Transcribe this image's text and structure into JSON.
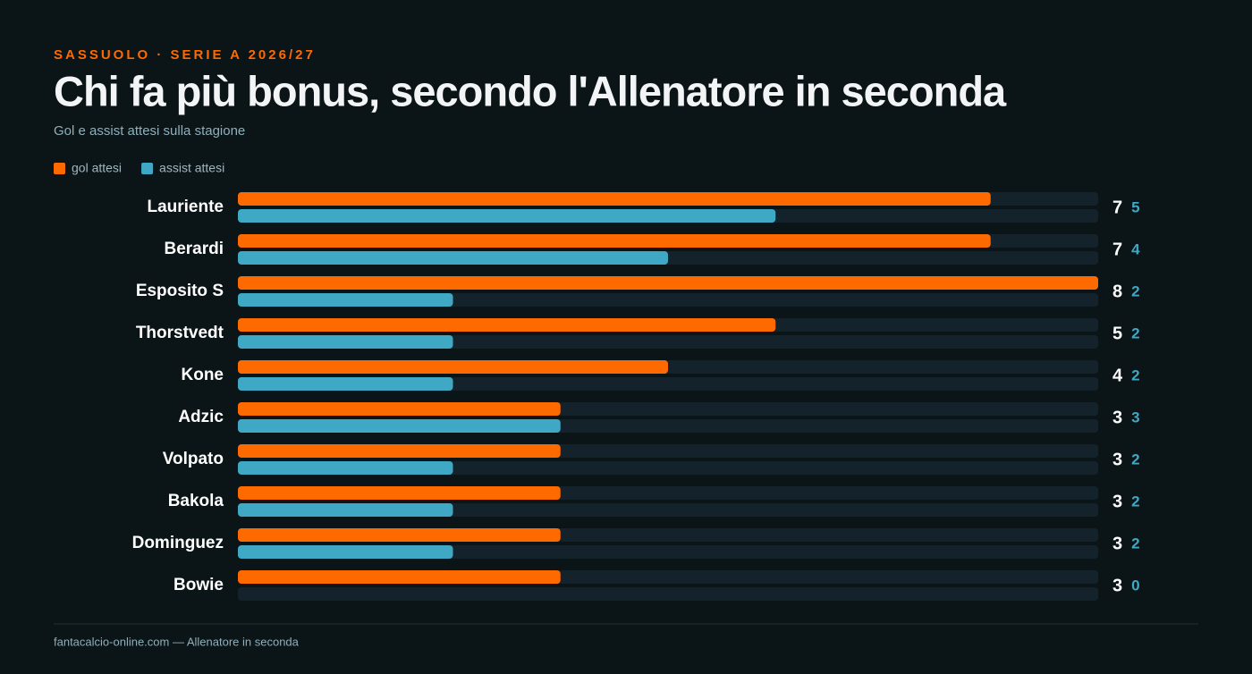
{
  "chart_data": {
    "type": "bar",
    "orientation": "horizontal",
    "kicker": "SASSUOLO · SERIE A 2026/27",
    "title": "Chi fa più bonus, secondo l'Allenatore in seconda",
    "subtitle": "Gol e assist attesi sulla stagione",
    "categories": [
      "Lauriente",
      "Berardi",
      "Esposito S",
      "Thorstvedt",
      "Kone",
      "Adzic",
      "Volpato",
      "Bakola",
      "Dominguez",
      "Bowie"
    ],
    "series": [
      {
        "name": "gol attesi",
        "color": "#ff6a00",
        "label_color": "#ffffff",
        "values": [
          7,
          7,
          8,
          5,
          4,
          3,
          3,
          3,
          3,
          3
        ]
      },
      {
        "name": "assist attesi",
        "color": "#3fa8c4",
        "label_color": "#3fa8c4",
        "values": [
          5,
          4,
          2,
          2,
          2,
          3,
          2,
          2,
          2,
          0
        ]
      }
    ],
    "xlim": [
      0,
      8
    ],
    "source": "fantacalcio-online.com — Allenatore in seconda"
  }
}
